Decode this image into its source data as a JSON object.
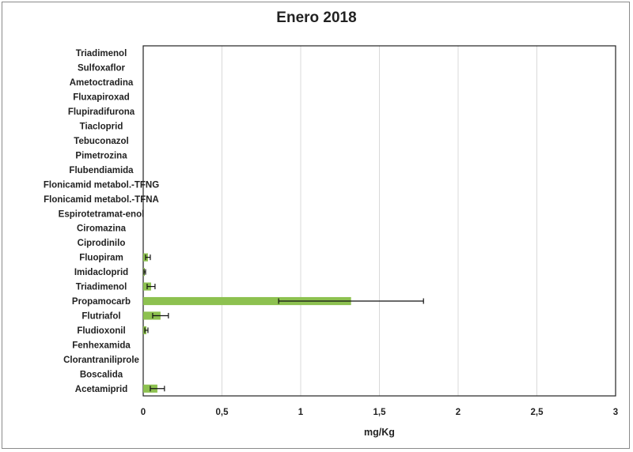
{
  "chart_data": {
    "type": "bar",
    "orientation": "horizontal",
    "title": "Enero 2018",
    "xlabel": "mg/Kg",
    "ylabel": "",
    "xlim": [
      0,
      3
    ],
    "xticks": [
      "0",
      "0,5",
      "1",
      "1,5",
      "2",
      "2,5",
      "3"
    ],
    "grid": "vertical",
    "colors": {
      "bar": "#8dc150",
      "error": "#111111",
      "grid": "#d9d9d9",
      "axis": "#222222"
    },
    "categories": [
      "Triadimenol",
      "Sulfoxaflor",
      "Ametoctradina",
      "Fluxapiroxad",
      "Flupiradifurona",
      "Tiacloprid",
      "Tebuconazol",
      "Pimetrozina",
      "Flubendiamida",
      "Flonicamid metabol.-TFNG",
      "Flonicamid metabol.-TFNA",
      "Espirotetramat-enol",
      "Ciromazina",
      "Ciprodinilo",
      "Fluopiram",
      "Imidacloprid",
      "Triadimenol",
      "Propamocarb",
      "Flutriafol",
      "Fludioxonil",
      "Fenhexamida",
      "Clorantraniliprole",
      "Boscalida",
      "Acetamiprid"
    ],
    "values": [
      0,
      0,
      0,
      0,
      0,
      0,
      0,
      0,
      0,
      0,
      0,
      0,
      0,
      0,
      0.03,
      0.01,
      0.05,
      1.32,
      0.11,
      0.02,
      0,
      0,
      0,
      0.09
    ],
    "errors": [
      0,
      0,
      0,
      0,
      0,
      0,
      0,
      0,
      0,
      0,
      0,
      0,
      0,
      0,
      0.015,
      0.005,
      0.025,
      0.46,
      0.05,
      0.01,
      0,
      0,
      0,
      0.045
    ]
  }
}
